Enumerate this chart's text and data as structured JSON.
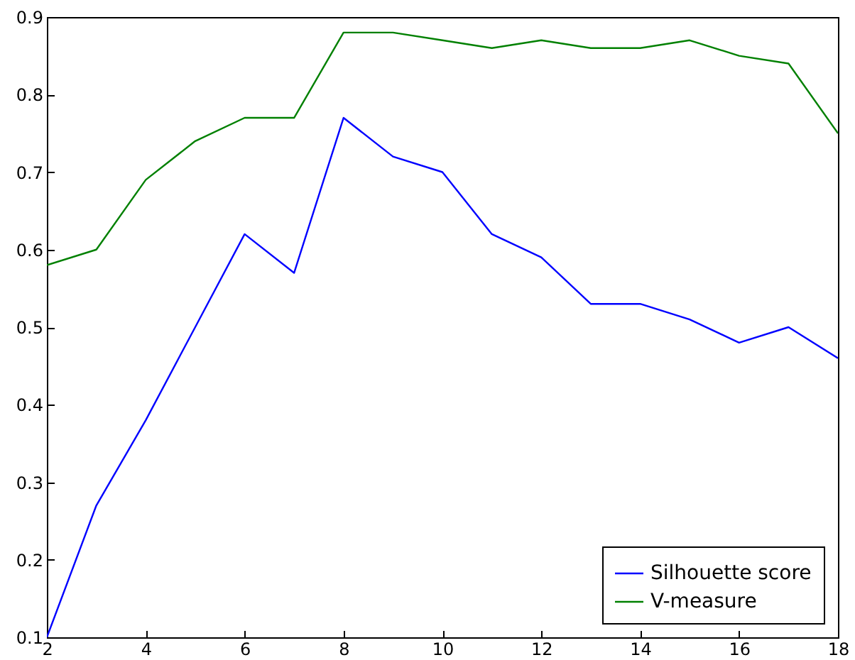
{
  "chart_data": {
    "type": "line",
    "x": [
      2,
      3,
      4,
      5,
      6,
      7,
      8,
      9,
      10,
      11,
      12,
      13,
      14,
      15,
      16,
      17,
      18
    ],
    "series": [
      {
        "name": "Silhouette score",
        "color": "#0000ff",
        "values": [
          0.1,
          0.27,
          0.38,
          0.5,
          0.62,
          0.57,
          0.77,
          0.72,
          0.7,
          0.62,
          0.59,
          0.53,
          0.53,
          0.51,
          0.48,
          0.5,
          0.46
        ]
      },
      {
        "name": "V-measure",
        "color": "#008000",
        "values": [
          0.58,
          0.6,
          0.69,
          0.74,
          0.77,
          0.77,
          0.88,
          0.88,
          0.87,
          0.86,
          0.87,
          0.86,
          0.86,
          0.87,
          0.85,
          0.84,
          0.75
        ]
      }
    ],
    "xlim": [
      2,
      18
    ],
    "xticks": [
      2,
      4,
      6,
      8,
      10,
      12,
      14,
      16,
      18
    ],
    "ylim": [
      0.1,
      0.9
    ],
    "yticks": [
      0.1,
      0.2,
      0.3,
      0.4,
      0.5,
      0.6,
      0.7,
      0.8,
      0.9
    ],
    "legend": "bottom right",
    "marker": "none",
    "line_style": "solid",
    "grid": false
  }
}
